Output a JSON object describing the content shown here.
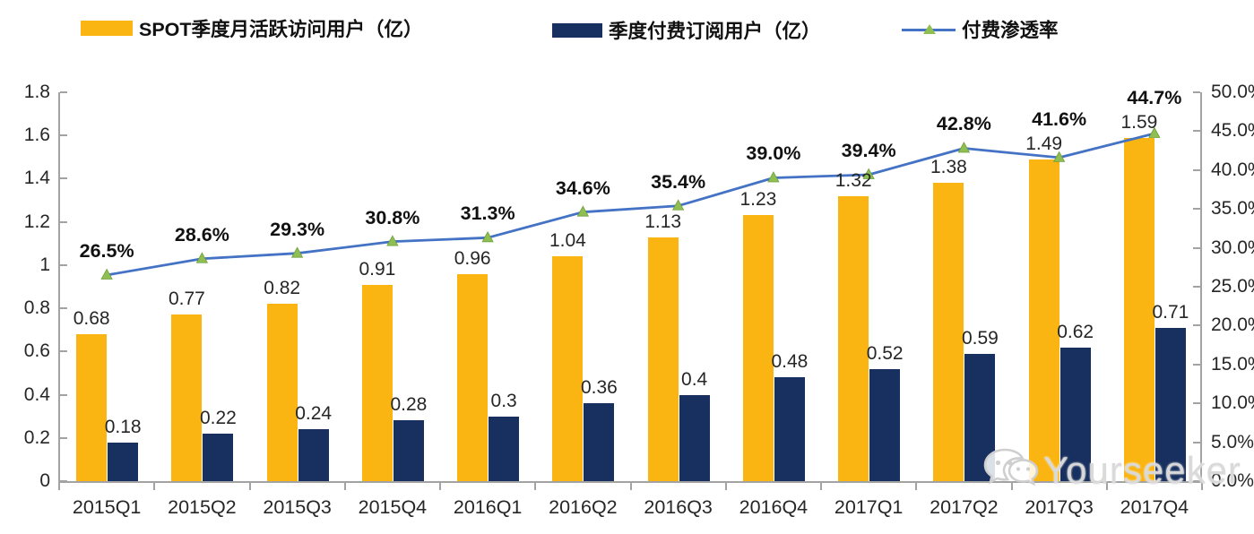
{
  "legend": [
    {
      "label": "SPOT季度月活跃访问用户（亿）",
      "color": "#FBB513",
      "type": "bar"
    },
    {
      "label": "季度付费订阅用户（亿）",
      "color": "#18305F",
      "type": "bar"
    },
    {
      "label": "付费渗透率",
      "color": "#4472C4",
      "marker_color": "#8FBE53",
      "type": "line"
    }
  ],
  "watermark": {
    "text": "Yourseeker",
    "icon": "wechat-bubbles-icon"
  },
  "colors": {
    "mau_bar": "#FBB513",
    "subs_bar": "#18305F",
    "line": "#4472C4",
    "marker_fill": "#8FBE53",
    "marker_stroke": "#6FA03C",
    "axis": "#a3a3a3",
    "text": "#262626"
  },
  "chart_data": {
    "type": "bar+line combo",
    "categories": [
      "2015Q1",
      "2015Q2",
      "2015Q3",
      "2015Q4",
      "2016Q1",
      "2016Q2",
      "2016Q3",
      "2016Q4",
      "2017Q1",
      "2017Q2",
      "2017Q3",
      "2017Q4"
    ],
    "series": [
      {
        "name": "SPOT季度月活跃访问用户（亿）",
        "type": "bar",
        "axis": "left",
        "color": "#FBB513",
        "values": [
          0.68,
          0.77,
          0.82,
          0.91,
          0.96,
          1.04,
          1.13,
          1.23,
          1.32,
          1.38,
          1.49,
          1.59
        ],
        "labels": [
          "0.68",
          "0.77",
          "0.82",
          "0.91",
          "0.96",
          "1.04",
          "1.13",
          "1.23",
          "1.32",
          "1.38",
          "1.49",
          "1.59"
        ]
      },
      {
        "name": "季度付费订阅用户（亿）",
        "type": "bar",
        "axis": "left",
        "color": "#18305F",
        "values": [
          0.18,
          0.22,
          0.24,
          0.28,
          0.3,
          0.36,
          0.4,
          0.48,
          0.52,
          0.59,
          0.62,
          0.71
        ],
        "labels": [
          "0.18",
          "0.22",
          "0.24",
          "0.28",
          "0.3",
          "0.36",
          "0.4",
          "0.48",
          "0.52",
          "0.59",
          "0.62",
          "0.71"
        ]
      },
      {
        "name": "付费渗透率",
        "type": "line",
        "axis": "right",
        "color": "#4472C4",
        "marker": "triangle-up",
        "marker_color": "#8FBE53",
        "values": [
          26.5,
          28.6,
          29.3,
          30.8,
          31.3,
          34.6,
          35.4,
          39.0,
          39.4,
          42.8,
          41.6,
          44.7
        ],
        "labels": [
          "26.5%",
          "28.6%",
          "29.3%",
          "30.8%",
          "31.3%",
          "34.6%",
          "35.4%",
          "39.0%",
          "39.4%",
          "42.8%",
          "41.6%",
          "44.7%"
        ]
      }
    ],
    "left_axis": {
      "min": 0,
      "max": 1.8,
      "step": 0.2,
      "tick_labels": [
        "0",
        "0.2",
        "0.4",
        "0.6",
        "0.8",
        "1",
        "1.2",
        "1.4",
        "1.6",
        "1.8"
      ]
    },
    "right_axis": {
      "min": 0,
      "max": 50,
      "step": 5,
      "tick_labels": [
        "0.0%",
        "5.0%",
        "10.0%",
        "15.0%",
        "20.0%",
        "25.0%",
        "30.0%",
        "35.0%",
        "40.0%",
        "45.0%",
        "50.0%"
      ]
    },
    "grid": false,
    "legend_position": "top"
  }
}
